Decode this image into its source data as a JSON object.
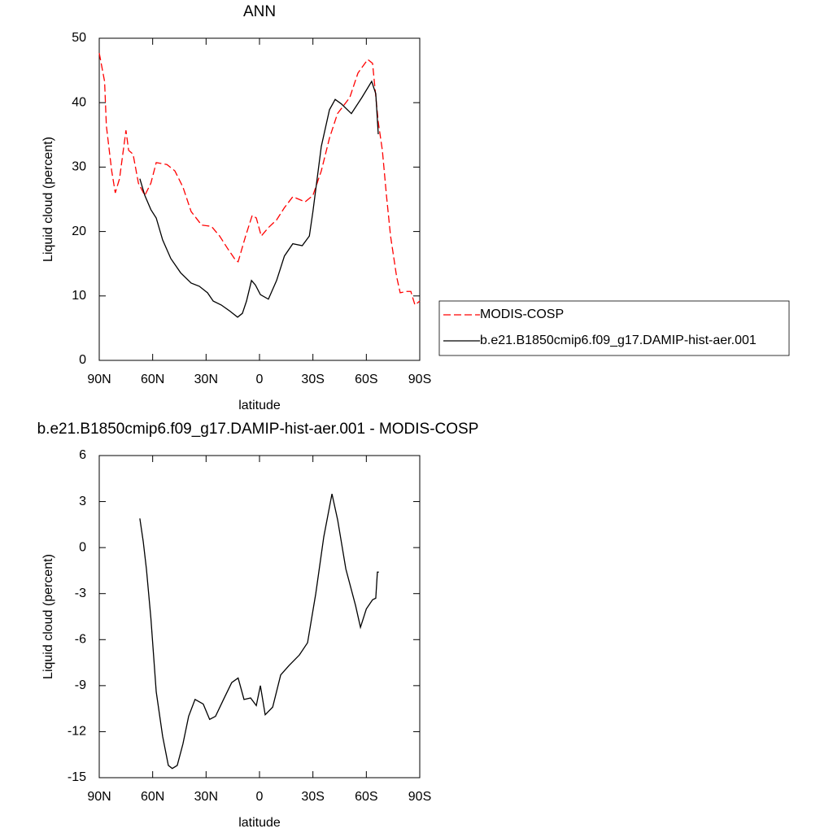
{
  "chart_data": [
    {
      "type": "line",
      "title": "ANN",
      "x_label": "latitude",
      "y_label": "Liquid cloud (percent)",
      "xlim": [
        90,
        -90
      ],
      "xticks": [
        {
          "value": 90,
          "label": "90N"
        },
        {
          "value": 60,
          "label": "60N"
        },
        {
          "value": 30,
          "label": "30N"
        },
        0,
        {
          "value": -30,
          "label": "30S"
        },
        {
          "value": -60,
          "label": "60S"
        },
        {
          "value": -90,
          "label": "90S"
        }
      ],
      "ylim": [
        0,
        50
      ],
      "yticks": [
        0,
        10,
        20,
        30,
        40,
        50
      ],
      "legend": "right",
      "series": [
        {
          "name": "MODIS-COSP",
          "color": "#ff0000",
          "dash": true,
          "x": [
            90,
            87,
            86,
            83,
            81,
            78.6,
            75,
            73.5,
            71,
            68,
            64.4,
            61,
            58,
            52,
            47.5,
            43,
            38.4,
            32.5,
            27,
            22.4,
            18,
            13.3,
            12,
            7.8,
            4.1,
            1.8,
            -1,
            -5,
            -9.6,
            -14,
            -18.7,
            -25.6,
            -30,
            -34.7,
            -39.3,
            -43.8,
            -50.7,
            -55.3,
            -60.8,
            -63.5,
            -66.7,
            -69,
            -71.3,
            -73.6,
            -77,
            -79,
            -82.7,
            -85,
            -87.3,
            -90
          ],
          "values": [
            47.7,
            43.3,
            36.4,
            29.4,
            26,
            28.2,
            35.7,
            32.6,
            32,
            27.5,
            25.6,
            27.5,
            30.7,
            30.4,
            29.4,
            26.9,
            23.1,
            21,
            20.8,
            19.3,
            17.4,
            15.5,
            15.3,
            19.3,
            22.5,
            22.1,
            19.3,
            20.6,
            21.8,
            23.7,
            25.4,
            24.6,
            25.6,
            29.4,
            34.5,
            38.3,
            40.8,
            44.6,
            46.7,
            46.1,
            37,
            32.6,
            25.6,
            19.3,
            13,
            10.5,
            10.7,
            10.7,
            8.6,
            9.2
          ]
        },
        {
          "name": "b.e21.B1850cmip6.f09_g17.DAMIP-hist-aer.001",
          "color": "#000000",
          "dash": false,
          "x": [
            67.2,
            64.4,
            61,
            58,
            54.4,
            49.8,
            44.3,
            38.4,
            33.8,
            29.2,
            26,
            21.5,
            16.9,
            12.3,
            9.6,
            7.3,
            4.5,
            2.3,
            -0.5,
            -5,
            -9.6,
            -14,
            -18.7,
            -24,
            -28,
            -30,
            -34.7,
            -39.3,
            -42.5,
            -46,
            -51.6,
            -57.5,
            -63,
            -65.3,
            -66.7
          ],
          "values": [
            28.2,
            25.6,
            23.4,
            22.1,
            18.7,
            15.8,
            13.6,
            12,
            11.5,
            10.5,
            9.2,
            8.6,
            7.7,
            6.7,
            7.3,
            9.2,
            12.4,
            11.7,
            10.2,
            9.5,
            12.4,
            16.2,
            18.1,
            17.8,
            19.3,
            23.1,
            33.2,
            38.9,
            40.5,
            39.8,
            38.3,
            40.8,
            43.3,
            41.4,
            35.1
          ]
        }
      ]
    },
    {
      "type": "line",
      "title": "b.e21.B1850cmip6.f09_g17.DAMIP-hist-aer.001 - MODIS-COSP",
      "x_label": "latitude",
      "y_label": "Liquid cloud (percent)",
      "xlim": [
        90,
        -90
      ],
      "xticks": [
        {
          "value": 90,
          "label": "90N"
        },
        {
          "value": 60,
          "label": "60N"
        },
        {
          "value": 30,
          "label": "30N"
        },
        0,
        {
          "value": -30,
          "label": "30S"
        },
        {
          "value": -60,
          "label": "60S"
        },
        {
          "value": -90,
          "label": "90S"
        }
      ],
      "ylim": [
        -15,
        6
      ],
      "yticks": [
        6,
        3,
        0,
        -3,
        -6,
        -9,
        -12,
        -15
      ],
      "series": [
        {
          "color": "#000000",
          "dash": false,
          "x": [
            67.2,
            65.3,
            63.5,
            61,
            58,
            54.4,
            51.2,
            49,
            46.2,
            43,
            39.8,
            36.2,
            31.6,
            28,
            24.7,
            20.2,
            15.6,
            12,
            8.7,
            5,
            1.8,
            -0.5,
            -3.2,
            -7.4,
            -11.9,
            -16.5,
            -22.4,
            -27,
            -31.6,
            -36.1,
            -40.7,
            -43.9,
            -48.5,
            -54,
            -56.7,
            -60,
            -63.5,
            -65.3,
            -66.2,
            -67
          ],
          "values": [
            1.9,
            0.4,
            -1.4,
            -4.6,
            -9.4,
            -12.3,
            -14.2,
            -14.4,
            -14.2,
            -12.8,
            -11,
            -9.9,
            -10.2,
            -11.2,
            -11,
            -9.9,
            -8.8,
            -8.5,
            -9.9,
            -9.8,
            -10.3,
            -9,
            -10.9,
            -10.4,
            -8.3,
            -7.7,
            -7,
            -6.2,
            -3,
            0.7,
            3.5,
            1.8,
            -1.4,
            -3.8,
            -5.2,
            -4,
            -3.4,
            -3.3,
            -1.6,
            -1.6
          ]
        }
      ]
    }
  ]
}
